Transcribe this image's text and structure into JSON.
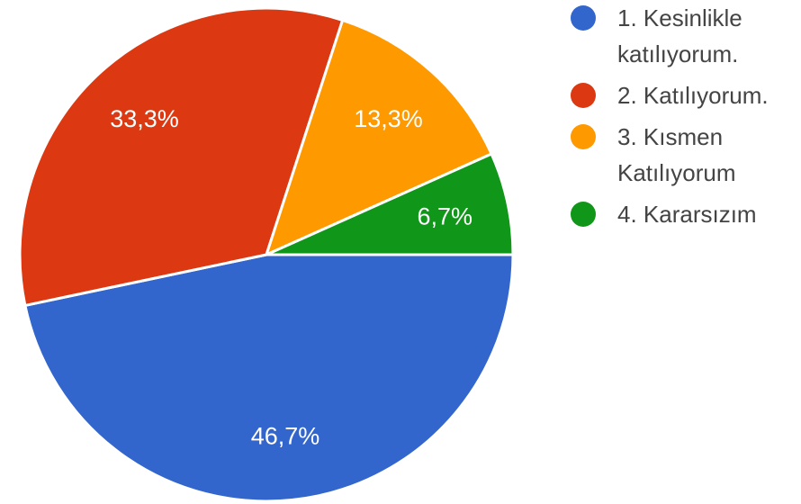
{
  "chart_data": {
    "type": "pie",
    "labels": [
      "1. Kesinlikle katılıyorum.",
      "2. Katılıyorum.",
      "3. Kısmen Katılıyorum",
      "4. Kararsızım"
    ],
    "legend_lines": [
      [
        "1. Kesinlikle",
        "katılıyorum."
      ],
      [
        "2. Katılıyorum."
      ],
      [
        "3. Kısmen",
        "Katılıyorum"
      ],
      [
        "4. Kararsızım"
      ]
    ],
    "values": [
      46.7,
      33.3,
      13.3,
      6.7
    ],
    "data_labels": [
      "46,7%",
      "33,3%",
      "13,3%",
      "6,7%"
    ],
    "colors": [
      "#3366cc",
      "#dc3912",
      "#ff9900",
      "#109618"
    ],
    "legend_position": "right"
  }
}
